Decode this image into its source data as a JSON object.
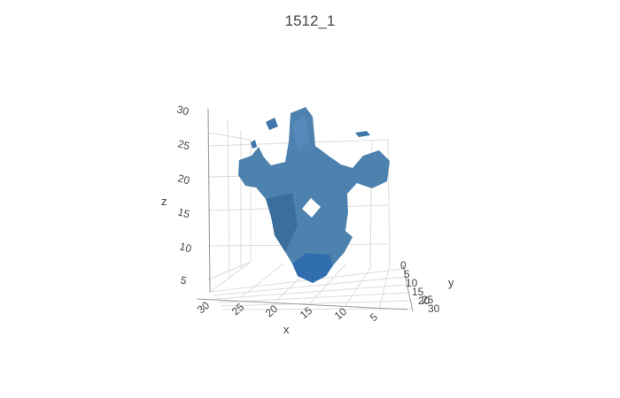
{
  "chart_data": {
    "type": "3d-isosurface",
    "title": "1512_1",
    "axes": {
      "x": {
        "label": "x",
        "ticks": [
          "30",
          "25",
          "20",
          "15",
          "10",
          "5"
        ]
      },
      "y": {
        "label": "y",
        "ticks": [
          "0",
          "5",
          "10",
          "15",
          "20",
          "25",
          "30"
        ]
      },
      "z": {
        "label": "z",
        "ticks": [
          "5",
          "10",
          "15",
          "20",
          "25",
          "30"
        ]
      }
    },
    "grid": true,
    "surface_color": "#3f77a8"
  }
}
